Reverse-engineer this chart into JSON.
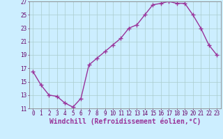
{
  "x": [
    0,
    1,
    2,
    3,
    4,
    5,
    6,
    7,
    8,
    9,
    10,
    11,
    12,
    13,
    14,
    15,
    16,
    17,
    18,
    19,
    20,
    21,
    22,
    23
  ],
  "y": [
    16.5,
    14.5,
    13.0,
    12.8,
    11.8,
    11.2,
    12.5,
    17.5,
    18.5,
    19.5,
    20.5,
    21.5,
    23.0,
    23.5,
    25.0,
    26.5,
    26.7,
    27.0,
    26.7,
    26.7,
    25.0,
    23.0,
    20.5,
    19.0
  ],
  "color": "#993399",
  "bg_color": "#cceeff",
  "grid_color": "#aacccc",
  "xlabel": "Windchill (Refroidissement éolien,°C)",
  "ylim": [
    11,
    27
  ],
  "xlim": [
    -0.5,
    23.5
  ],
  "yticks": [
    11,
    13,
    15,
    17,
    19,
    21,
    23,
    25,
    27
  ],
  "xticks": [
    0,
    1,
    2,
    3,
    4,
    5,
    6,
    7,
    8,
    9,
    10,
    11,
    12,
    13,
    14,
    15,
    16,
    17,
    18,
    19,
    20,
    21,
    22,
    23
  ],
  "marker": "+",
  "linewidth": 1.0,
  "markersize": 4,
  "markeredgewidth": 1.0,
  "xlabel_fontsize": 7,
  "tick_fontsize": 5.5
}
